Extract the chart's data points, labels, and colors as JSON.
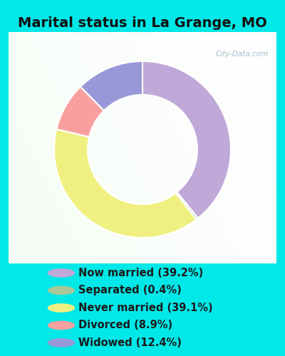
{
  "title": "Marital status in La Grange, MO",
  "title_fontsize": 14,
  "title_fontweight": "bold",
  "categories": [
    "Now married",
    "Separated",
    "Never married",
    "Divorced",
    "Widowed"
  ],
  "values": [
    39.2,
    0.4,
    39.1,
    8.9,
    12.4
  ],
  "colors": [
    "#c0a8d8",
    "#a8c898",
    "#f0f080",
    "#f8a0a0",
    "#9898d8"
  ],
  "legend_labels": [
    "Now married (39.2%)",
    "Separated (0.4%)",
    "Never married (39.1%)",
    "Divorced (8.9%)",
    "Widowed (12.4%)"
  ],
  "bg_cyan": "#00e8e8",
  "chart_box_color": "#e8f4ec",
  "watermark": "City-Data.com",
  "legend_fontsize": 10.5,
  "legend_text_color": "#1a1a1a",
  "donut_width": 0.38,
  "title_color": "#111111"
}
